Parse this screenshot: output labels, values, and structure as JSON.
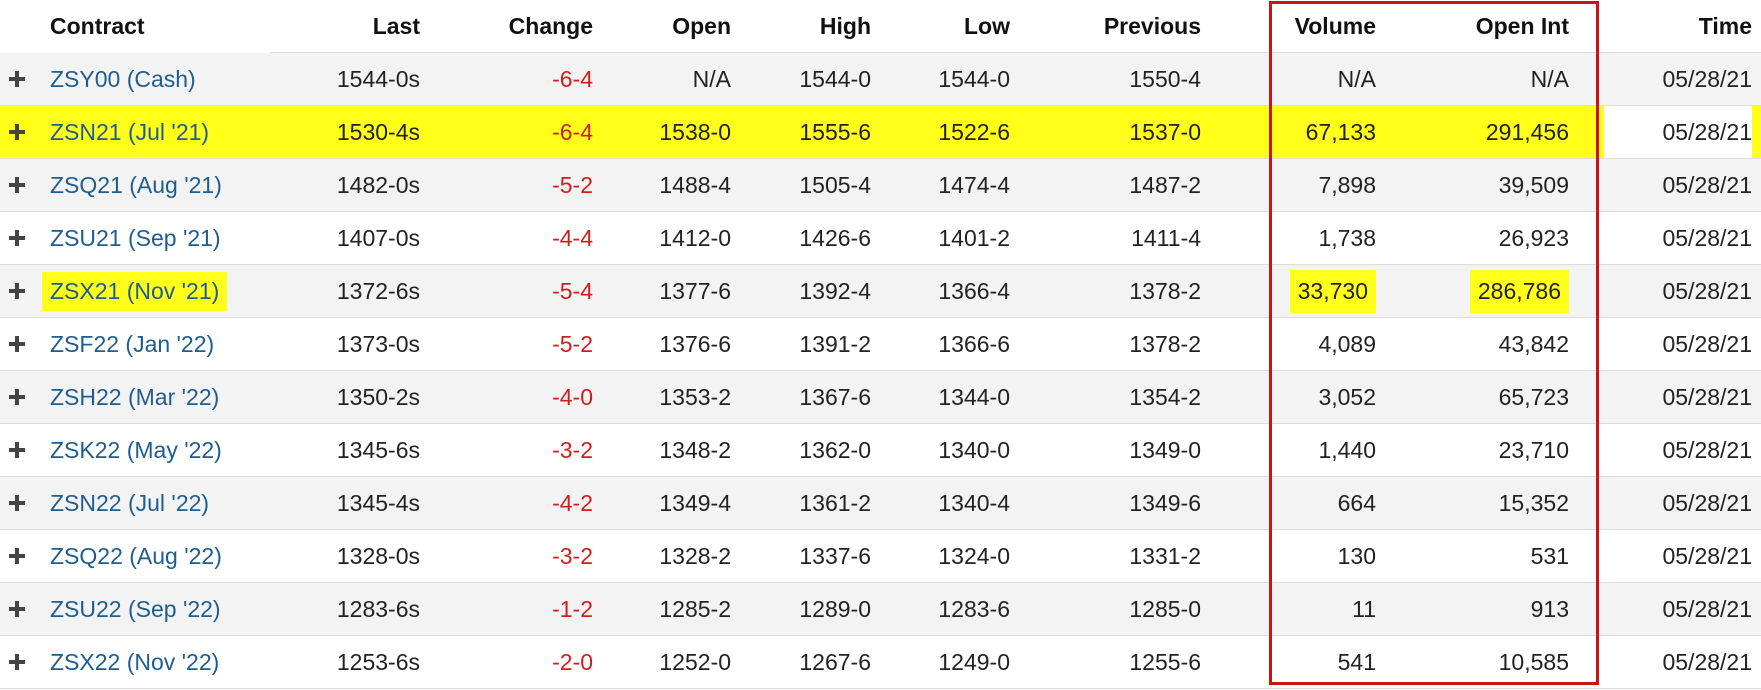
{
  "columns": {
    "contract": "Contract",
    "last": "Last",
    "change": "Change",
    "open": "Open",
    "high": "High",
    "low": "Low",
    "previous": "Previous",
    "volume": "Volume",
    "open_int": "Open Int",
    "time": "Time"
  },
  "colors": {
    "highlight": "#ffff1a",
    "link": "#1f5d91",
    "negative": "#d31c1c",
    "annotation_box": "#c81414"
  },
  "row_icon": "plus-icon",
  "rows": [
    {
      "contract": "ZSY00 (Cash)",
      "last": "1544-0s",
      "change": "-6-4",
      "open": "N/A",
      "high": "1544-0",
      "low": "1544-0",
      "previous": "1550-4",
      "volume": "N/A",
      "open_int": "N/A",
      "time": "05/28/21"
    },
    {
      "contract": "ZSN21 (Jul '21)",
      "last": "1530-4s",
      "change": "-6-4",
      "open": "1538-0",
      "high": "1555-6",
      "low": "1522-6",
      "previous": "1537-0",
      "volume": "67,133",
      "open_int": "291,456",
      "time": "05/28/21"
    },
    {
      "contract": "ZSQ21 (Aug '21)",
      "last": "1482-0s",
      "change": "-5-2",
      "open": "1488-4",
      "high": "1505-4",
      "low": "1474-4",
      "previous": "1487-2",
      "volume": "7,898",
      "open_int": "39,509",
      "time": "05/28/21"
    },
    {
      "contract": "ZSU21 (Sep '21)",
      "last": "1407-0s",
      "change": "-4-4",
      "open": "1412-0",
      "high": "1426-6",
      "low": "1401-2",
      "previous": "1411-4",
      "volume": "1,738",
      "open_int": "26,923",
      "time": "05/28/21"
    },
    {
      "contract": "ZSX21 (Nov '21)",
      "last": "1372-6s",
      "change": "-5-4",
      "open": "1377-6",
      "high": "1392-4",
      "low": "1366-4",
      "previous": "1378-2",
      "volume": "33,730",
      "open_int": "286,786",
      "time": "05/28/21"
    },
    {
      "contract": "ZSF22 (Jan '22)",
      "last": "1373-0s",
      "change": "-5-2",
      "open": "1376-6",
      "high": "1391-2",
      "low": "1366-6",
      "previous": "1378-2",
      "volume": "4,089",
      "open_int": "43,842",
      "time": "05/28/21"
    },
    {
      "contract": "ZSH22 (Mar '22)",
      "last": "1350-2s",
      "change": "-4-0",
      "open": "1353-2",
      "high": "1367-6",
      "low": "1344-0",
      "previous": "1354-2",
      "volume": "3,052",
      "open_int": "65,723",
      "time": "05/28/21"
    },
    {
      "contract": "ZSK22 (May '22)",
      "last": "1345-6s",
      "change": "-3-2",
      "open": "1348-2",
      "high": "1362-0",
      "low": "1340-0",
      "previous": "1349-0",
      "volume": "1,440",
      "open_int": "23,710",
      "time": "05/28/21"
    },
    {
      "contract": "ZSN22 (Jul '22)",
      "last": "1345-4s",
      "change": "-4-2",
      "open": "1349-4",
      "high": "1361-2",
      "low": "1340-4",
      "previous": "1349-6",
      "volume": "664",
      "open_int": "15,352",
      "time": "05/28/21"
    },
    {
      "contract": "ZSQ22 (Aug '22)",
      "last": "1328-0s",
      "change": "-3-2",
      "open": "1328-2",
      "high": "1337-6",
      "low": "1324-0",
      "previous": "1331-2",
      "volume": "130",
      "open_int": "531",
      "time": "05/28/21"
    },
    {
      "contract": "ZSU22 (Sep '22)",
      "last": "1283-6s",
      "change": "-1-2",
      "open": "1285-2",
      "high": "1289-0",
      "low": "1283-6",
      "previous": "1285-0",
      "volume": "11",
      "open_int": "913",
      "time": "05/28/21"
    },
    {
      "contract": "ZSX22 (Nov '22)",
      "last": "1253-6s",
      "change": "-2-0",
      "open": "1252-0",
      "high": "1267-6",
      "low": "1249-0",
      "previous": "1255-6",
      "volume": "541",
      "open_int": "10,585",
      "time": "05/28/21"
    }
  ]
}
